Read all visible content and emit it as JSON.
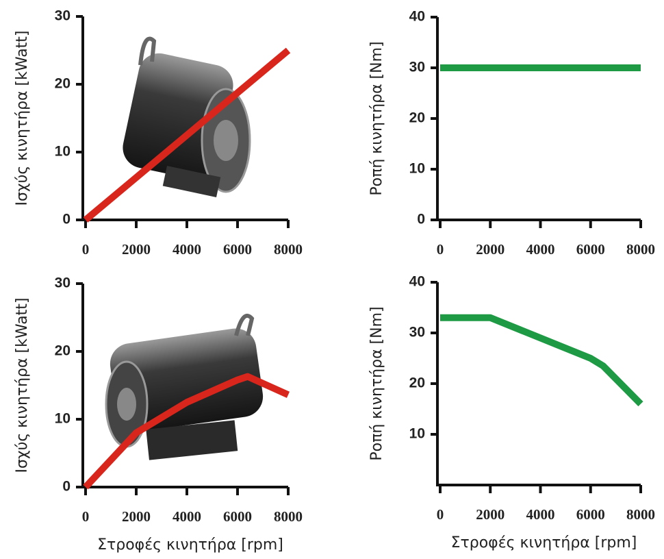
{
  "chart_data": [
    {
      "type": "line",
      "ylabel": "Ισχύς κινητήρα [kWatt]",
      "x": [
        0,
        8000
      ],
      "values": [
        0,
        25
      ],
      "color": "#d9261c",
      "xlim": [
        0,
        8000
      ],
      "xticks": [
        0,
        2000,
        4000,
        6000,
        8000
      ],
      "ylim": [
        0,
        30
      ],
      "yticks": [
        0,
        10,
        20,
        30
      ]
    },
    {
      "type": "line",
      "ylabel": "Ροπή κινητήρα [Nm]",
      "x": [
        0,
        8000
      ],
      "values": [
        30,
        30
      ],
      "color": "#1e9a45",
      "xlim": [
        0,
        8000
      ],
      "xticks": [
        0,
        2000,
        4000,
        6000,
        8000
      ],
      "ylim": [
        0,
        40
      ],
      "yticks": [
        0,
        10,
        20,
        30,
        40
      ]
    },
    {
      "type": "line",
      "ylabel": "Ισχύς κινητήρα [kWatt]",
      "xlabel": "Στροφές κινητήρα [rpm]",
      "x": [
        0,
        2000,
        4000,
        6000,
        6400,
        8000
      ],
      "values": [
        0,
        8,
        12.5,
        15.8,
        16.3,
        13.6
      ],
      "color": "#d9261c",
      "xlim": [
        0,
        8000
      ],
      "xticks": [
        0,
        2000,
        4000,
        6000,
        8000
      ],
      "ylim": [
        0,
        30
      ],
      "yticks": [
        0,
        10,
        20,
        30
      ]
    },
    {
      "type": "line",
      "ylabel": "Ροπή κινητήρα [Nm]",
      "xlabel": "Στροφές κινητήρα [rpm]",
      "x": [
        0,
        2000,
        4000,
        6000,
        6500,
        8000
      ],
      "values": [
        33,
        33,
        29,
        25,
        23.5,
        16
      ],
      "color": "#1e9a45",
      "xlim": [
        0,
        8000
      ],
      "xticks": [
        0,
        2000,
        4000,
        6000,
        8000
      ],
      "ylim": [
        0,
        40
      ],
      "yticks": [
        10,
        20,
        30,
        40
      ]
    }
  ]
}
